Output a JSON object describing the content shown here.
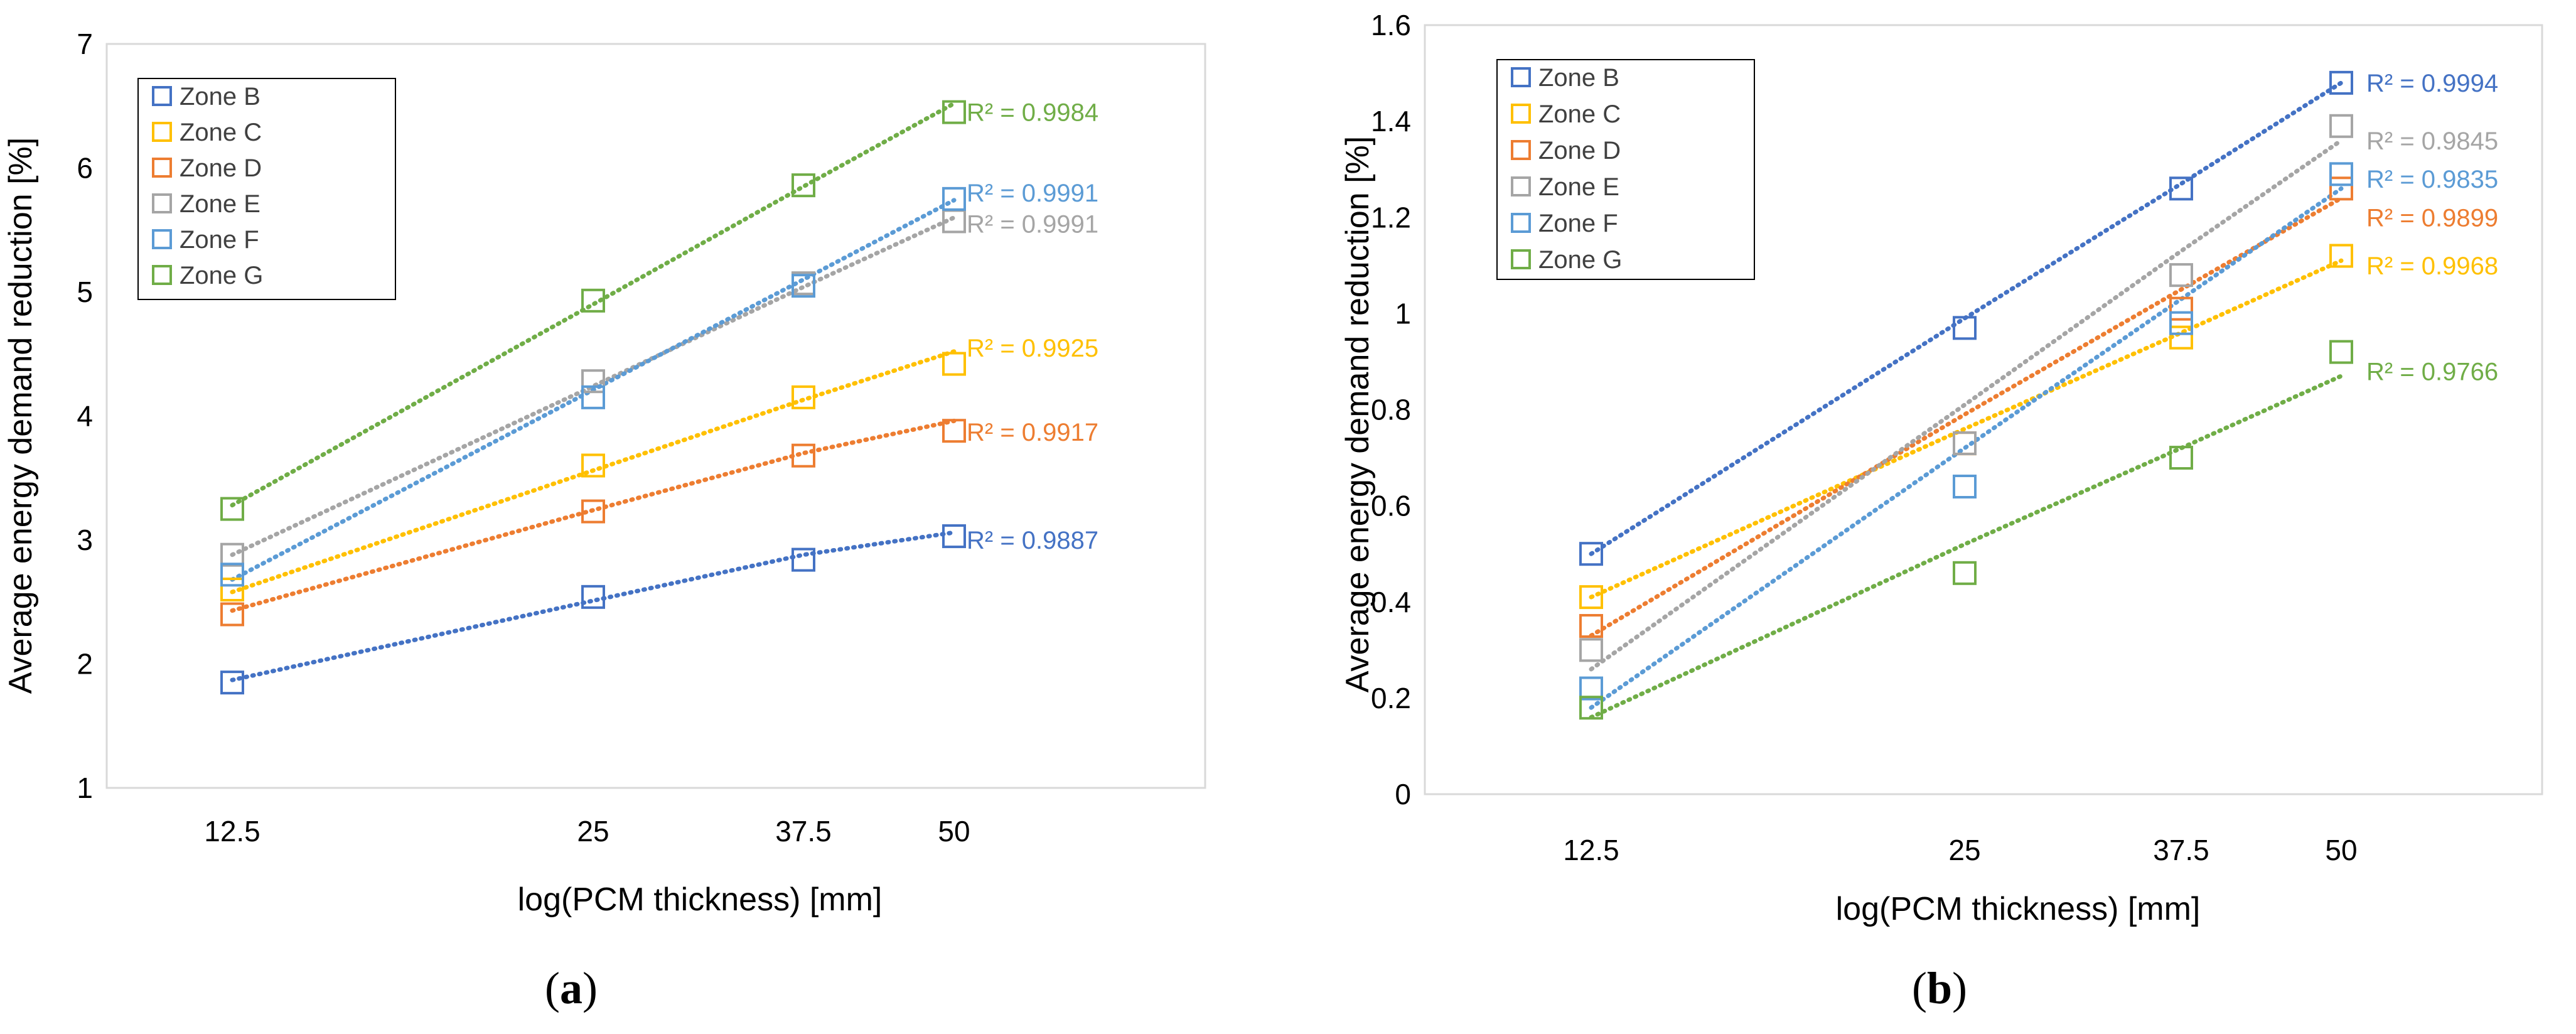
{
  "chart_data": [
    {
      "type": "scatter",
      "panel_label": "(a)",
      "caption": {
        "open": "(",
        "letter": "a",
        "close": ")"
      },
      "xlabel": "log(PCM thickness) [mm]",
      "ylabel": "Average energy demand reduction [%]",
      "x_scale": "log",
      "x": [
        12.5,
        25,
        37.5,
        50
      ],
      "x_tick_labels": [
        "12.5",
        "25",
        "37.5",
        "50"
      ],
      "ylim": [
        1,
        7
      ],
      "y_ticks": [
        1,
        2,
        3,
        4,
        5,
        6,
        7
      ],
      "y_tick_labels": [
        "1",
        "2",
        "3",
        "4",
        "5",
        "6",
        "7"
      ],
      "legend_position": "top-left",
      "series": [
        {
          "name": "Zone B",
          "color": "#4472C4",
          "values": [
            1.85,
            2.54,
            2.84,
            3.03
          ],
          "trend": [
            1.87,
            2.51,
            2.88,
            3.06
          ],
          "r2_label": "R² = 0.9887",
          "r2_y": 3.0
        },
        {
          "name": "Zone C",
          "color": "#FFC000",
          "values": [
            2.6,
            3.6,
            4.15,
            4.42
          ],
          "trend": [
            2.58,
            3.56,
            4.13,
            4.52
          ],
          "r2_label": "R² = 0.9925",
          "r2_y": 4.55
        },
        {
          "name": "Zone D",
          "color": "#ED7D31",
          "values": [
            2.4,
            3.23,
            3.68,
            3.88
          ],
          "trend": [
            2.43,
            3.24,
            3.7,
            3.96
          ],
          "r2_label": "R² = 0.9917",
          "r2_y": 3.87
        },
        {
          "name": "Zone E",
          "color": "#A5A5A5",
          "values": [
            2.88,
            4.28,
            5.07,
            5.57
          ],
          "trend": [
            2.88,
            4.24,
            5.04,
            5.6
          ],
          "r2_label": "R² = 0.9991",
          "r2_y": 5.55
        },
        {
          "name": "Zone F",
          "color": "#5B9BD5",
          "values": [
            2.72,
            4.15,
            5.05,
            5.75
          ],
          "trend": [
            2.68,
            4.21,
            5.1,
            5.74
          ],
          "r2_label": "R² = 0.9991",
          "r2_y": 5.8
        },
        {
          "name": "Zone G",
          "color": "#70AD47",
          "values": [
            3.25,
            4.93,
            5.86,
            6.45
          ],
          "trend": [
            3.28,
            4.9,
            5.85,
            6.52
          ],
          "r2_label": "R² = 0.9984",
          "r2_y": 6.45
        }
      ]
    },
    {
      "type": "scatter",
      "panel_label": "(b)",
      "caption": {
        "open": "(",
        "letter": "b",
        "close": ")"
      },
      "xlabel": "log(PCM thickness) [mm]",
      "ylabel": "Average energy demand reduction [%]",
      "x_scale": "log",
      "x": [
        12.5,
        25,
        37.5,
        50
      ],
      "x_tick_labels": [
        "12.5",
        "25",
        "37.5",
        "50"
      ],
      "ylim": [
        0,
        1.6
      ],
      "y_ticks": [
        0,
        0.2,
        0.4,
        0.6,
        0.8,
        1,
        1.2,
        1.4,
        1.6
      ],
      "y_tick_labels": [
        "0",
        "0.2",
        "0.4",
        "0.6",
        "0.8",
        "1",
        "1.2",
        "1.4",
        "1.6"
      ],
      "legend_position": "top-left",
      "series": [
        {
          "name": "Zone B",
          "color": "#4472C4",
          "values": [
            0.5,
            0.97,
            1.26,
            1.48
          ],
          "trend": [
            0.5,
            0.99,
            1.27,
            1.48
          ],
          "r2_label": "R² = 0.9994",
          "r2_y": 1.48
        },
        {
          "name": "Zone C",
          "color": "#FFC000",
          "values": [
            0.41,
            0.73,
            0.95,
            1.12
          ],
          "trend": [
            0.41,
            0.76,
            0.96,
            1.11
          ],
          "r2_label": "R² = 0.9968",
          "r2_y": 1.1
        },
        {
          "name": "Zone D",
          "color": "#ED7D31",
          "values": [
            0.35,
            0.73,
            1.01,
            1.26
          ],
          "trend": [
            0.33,
            0.79,
            1.05,
            1.24
          ],
          "r2_label": "R² = 0.9899",
          "r2_y": 1.2
        },
        {
          "name": "Zone E",
          "color": "#A5A5A5",
          "values": [
            0.3,
            0.73,
            1.08,
            1.39
          ],
          "trend": [
            0.26,
            0.81,
            1.13,
            1.36
          ],
          "r2_label": "R² = 0.9845",
          "r2_y": 1.36
        },
        {
          "name": "Zone F",
          "color": "#5B9BD5",
          "values": [
            0.22,
            0.64,
            0.98,
            1.29
          ],
          "trend": [
            0.18,
            0.72,
            1.03,
            1.26
          ],
          "r2_label": "R² = 0.9835",
          "r2_y": 1.28
        },
        {
          "name": "Zone G",
          "color": "#70AD47",
          "values": [
            0.18,
            0.46,
            0.7,
            0.92
          ],
          "trend": [
            0.16,
            0.52,
            0.72,
            0.87
          ],
          "r2_label": "R² = 0.9766",
          "r2_y": 0.88
        }
      ]
    }
  ]
}
